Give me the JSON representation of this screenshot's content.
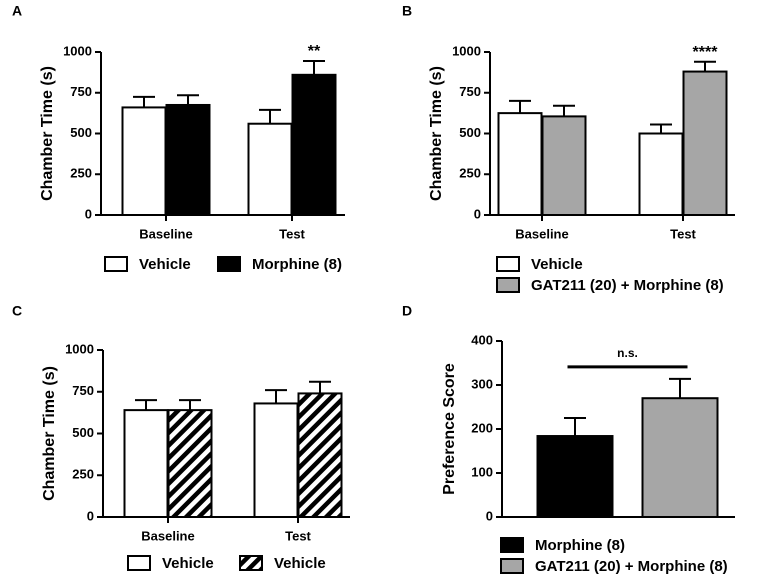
{
  "chart_data": [
    {
      "type": "bar",
      "panel": "A",
      "ylabel": "Chamber Time (s)",
      "categories": [
        "Baseline",
        "Test"
      ],
      "series": [
        {
          "name": "Vehicle",
          "color": "#ffffff",
          "values": [
            660,
            560
          ],
          "errors": [
            65,
            85
          ]
        },
        {
          "name": "Morphine (8)",
          "color": "#000000",
          "values": [
            675,
            860
          ],
          "errors": [
            60,
            85
          ]
        }
      ],
      "annotation": "**",
      "ylim": [
        0,
        1000
      ],
      "yticks": [
        0,
        250,
        500,
        750,
        1000
      ],
      "grid": false,
      "legend": "bottom-row"
    },
    {
      "type": "bar",
      "panel": "B",
      "ylabel": "Chamber Time (s)",
      "categories": [
        "Baseline",
        "Test"
      ],
      "series": [
        {
          "name": "Vehicle",
          "color": "#ffffff",
          "values": [
            625,
            500
          ],
          "errors": [
            75,
            55
          ]
        },
        {
          "name": "GAT211 (20) + Morphine (8)",
          "color": "#a6a6a6",
          "values": [
            605,
            880
          ],
          "errors": [
            65,
            60
          ]
        }
      ],
      "annotation": "****",
      "ylim": [
        0,
        1000
      ],
      "yticks": [
        0,
        250,
        500,
        750,
        1000
      ],
      "grid": false,
      "legend": "bottom-column"
    },
    {
      "type": "bar",
      "panel": "C",
      "ylabel": "Chamber Time (s)",
      "categories": [
        "Baseline",
        "Test"
      ],
      "series": [
        {
          "name": "Vehicle",
          "color": "#ffffff",
          "values": [
            640,
            680
          ],
          "errors": [
            60,
            80
          ]
        },
        {
          "name": "Vehicle",
          "color": "#ffffff",
          "pattern": "hatch",
          "values": [
            640,
            740
          ],
          "errors": [
            60,
            70
          ]
        }
      ],
      "ylim": [
        0,
        1000
      ],
      "yticks": [
        0,
        250,
        500,
        750,
        1000
      ],
      "grid": false,
      "legend": "bottom-row"
    },
    {
      "type": "bar",
      "panel": "D",
      "ylabel": "Preference Score",
      "categories": [
        null
      ],
      "series": [
        {
          "name": "Morphine (8)",
          "color": "#000000",
          "values": [
            184
          ],
          "errors": [
            41
          ]
        },
        {
          "name": "GAT211 (20) + Morphine (8)",
          "color": "#a6a6a6",
          "values": [
            270
          ],
          "errors": [
            44
          ]
        }
      ],
      "annotation": "n.s.",
      "ylim": [
        0,
        400
      ],
      "yticks": [
        0,
        100,
        200,
        300,
        400
      ],
      "grid": false,
      "legend": "bottom-column"
    }
  ]
}
